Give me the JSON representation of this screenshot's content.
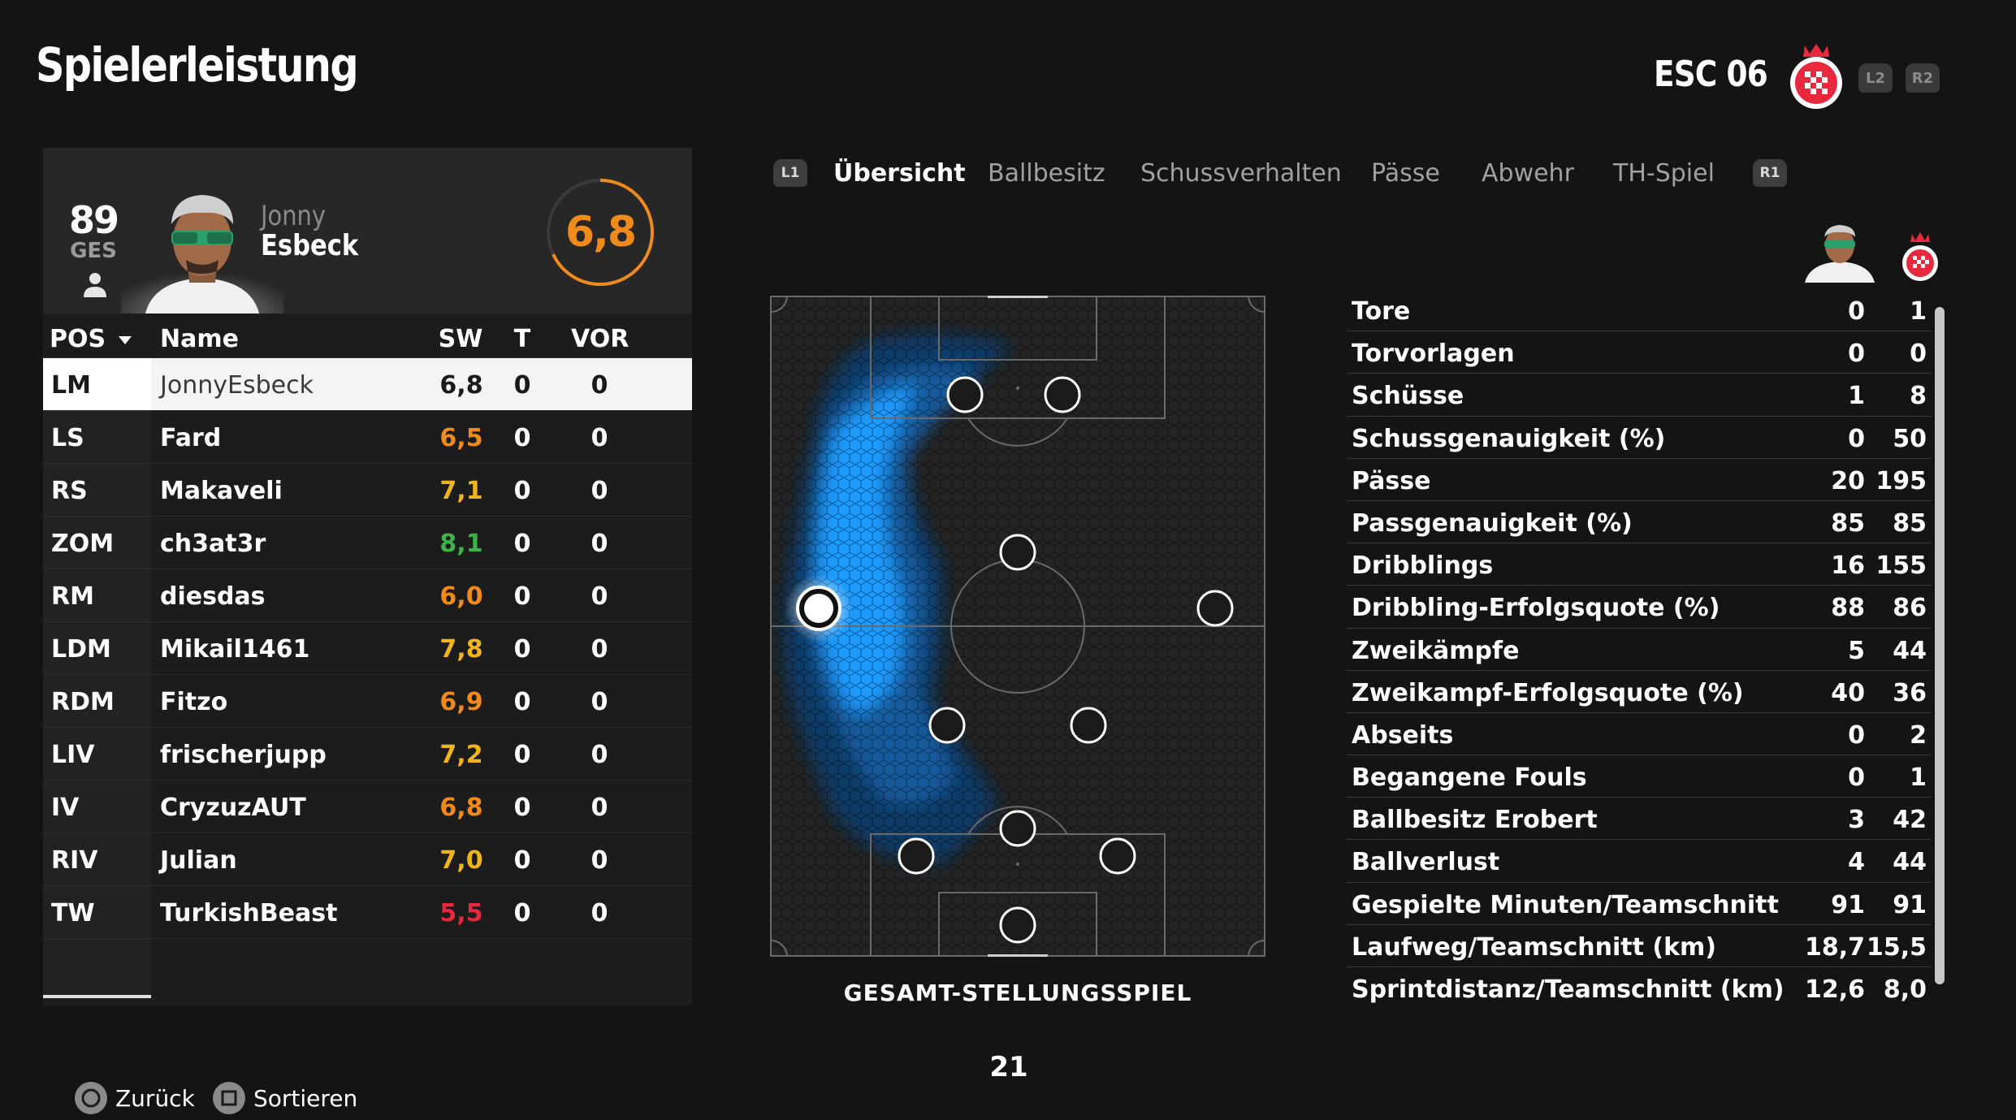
{
  "header": {
    "title": "Spielerleistung",
    "team_name": "ESC 06",
    "l2_label": "L2",
    "r2_label": "R2"
  },
  "player": {
    "overall": "89",
    "overall_label": "GES",
    "first_name": "Jonny",
    "last_name": "Esbeck",
    "rating": "6,8",
    "rating_fraction": 0.68,
    "rating_color": "#f08a1c"
  },
  "table": {
    "headers": {
      "pos": "POS",
      "name": "Name",
      "sw": "SW",
      "t": "T",
      "vor": "VOR"
    },
    "sort_icon": "triangle-down-icon",
    "rows": [
      {
        "pos": "LM",
        "name": "JonnyEsbeck",
        "sw": "6,8",
        "sw_color": "#1a1a1a",
        "t": "0",
        "vor": "0"
      },
      {
        "pos": "LS",
        "name": "Fard",
        "sw": "6,5",
        "sw_color": "#f08a1c",
        "t": "0",
        "vor": "0"
      },
      {
        "pos": "RS",
        "name": "Makaveli",
        "sw": "7,1",
        "sw_color": "#f0b41c",
        "t": "0",
        "vor": "0"
      },
      {
        "pos": "ZOM",
        "name": "ch3at3r",
        "sw": "8,1",
        "sw_color": "#3cb44a",
        "t": "0",
        "vor": "0"
      },
      {
        "pos": "RM",
        "name": "diesdas",
        "sw": "6,0",
        "sw_color": "#f08a1c",
        "t": "0",
        "vor": "0"
      },
      {
        "pos": "LDM",
        "name": "Mikail1461",
        "sw": "7,8",
        "sw_color": "#f0b41c",
        "t": "0",
        "vor": "0"
      },
      {
        "pos": "RDM",
        "name": "Fitzo",
        "sw": "6,9",
        "sw_color": "#f08a1c",
        "t": "0",
        "vor": "0"
      },
      {
        "pos": "LIV",
        "name": "frischerjupp",
        "sw": "7,2",
        "sw_color": "#f0b41c",
        "t": "0",
        "vor": "0"
      },
      {
        "pos": "IV",
        "name": "CryzuzAUT",
        "sw": "6,8",
        "sw_color": "#f08a1c",
        "t": "0",
        "vor": "0"
      },
      {
        "pos": "RIV",
        "name": "Julian",
        "sw": "7,0",
        "sw_color": "#f0b41c",
        "t": "0",
        "vor": "0"
      },
      {
        "pos": "TW",
        "name": "TurkishBeast",
        "sw": "5,5",
        "sw_color": "#e8283c",
        "t": "0",
        "vor": "0"
      }
    ]
  },
  "tabs": {
    "left_button": "L1",
    "right_button": "R1",
    "items": [
      "Übersicht",
      "Ballbesitz",
      "Schussverhalten",
      "Pässe",
      "Abwehr",
      "TH-Spiel"
    ],
    "active": "Übersicht"
  },
  "pitch": {
    "label": "GESAMT-STELLUNGSSPIEL",
    "heatmap_color": "#1e9bff"
  },
  "stats": [
    {
      "label": "Tore",
      "player": "0",
      "team": "1"
    },
    {
      "label": "Torvorlagen",
      "player": "0",
      "team": "0"
    },
    {
      "label": "Schüsse",
      "player": "1",
      "team": "8"
    },
    {
      "label": "Schussgenauigkeit (%)",
      "player": "0",
      "team": "50"
    },
    {
      "label": "Pässe",
      "player": "20",
      "team": "195"
    },
    {
      "label": "Passgenauigkeit (%)",
      "player": "85",
      "team": "85"
    },
    {
      "label": "Dribblings",
      "player": "16",
      "team": "155"
    },
    {
      "label": "Dribbling-Erfolgsquote (%)",
      "player": "88",
      "team": "86"
    },
    {
      "label": "Zweikämpfe",
      "player": "5",
      "team": "44"
    },
    {
      "label": "Zweikampf-Erfolgsquote (%)",
      "player": "40",
      "team": "36"
    },
    {
      "label": "Abseits",
      "player": "0",
      "team": "2"
    },
    {
      "label": "Begangene Fouls",
      "player": "0",
      "team": "1"
    },
    {
      "label": "Ballbesitz Erobert",
      "player": "3",
      "team": "42"
    },
    {
      "label": "Ballverlust",
      "player": "4",
      "team": "44"
    },
    {
      "label": "Gespielte Minuten/Teamschnitt",
      "player": "91",
      "team": "91"
    },
    {
      "label": "Laufweg/Teamschnitt (km)",
      "player": "18,7",
      "team": "15,5"
    },
    {
      "label": "Sprintdistanz/Teamschnitt (km)",
      "player": "12,6",
      "team": "8,0"
    }
  ],
  "page_number": "21",
  "footer": {
    "back_label": "Zurück",
    "back_icon": "circle-button-icon",
    "sort_label": "Sortieren",
    "sort_icon": "square-button-icon"
  }
}
